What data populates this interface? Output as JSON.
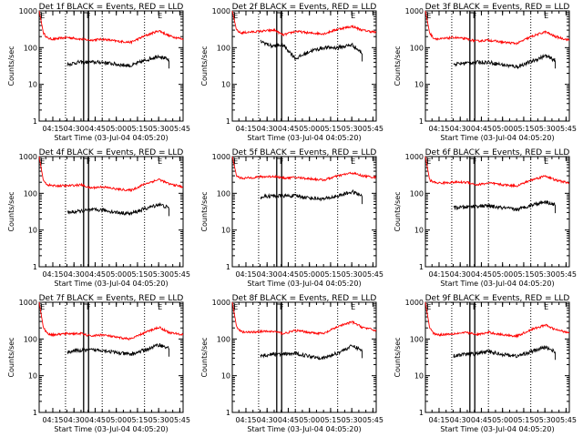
{
  "figure": {
    "x_tick_labels": [
      "04:15",
      "04:30",
      "04:45",
      "05:00",
      "05:15",
      "05:30",
      "05:45"
    ],
    "y_tick_labels": [
      "1",
      "10",
      "100",
      "1000"
    ],
    "ylabel": "Counts/sec",
    "xlabel": "Start Time (03-Jul-04 04:05:20)",
    "flag_left": "E",
    "flag_mid": "F",
    "flag_right": "E",
    "colors": {
      "events": "#000000",
      "lld": "#ff0000",
      "axes": "#000000"
    }
  },
  "chart_data": [
    {
      "type": "line",
      "title": "Det 1f BLACK = Events, RED = LLD",
      "xlabel": "Start Time (03-Jul-04 04:05:20)",
      "ylabel": "Counts/sec",
      "x_unit": "minutes after 04:05:20",
      "x_range": [
        0,
        102
      ],
      "ylim": [
        1,
        1000
      ],
      "y_scale": "log",
      "series": [
        {
          "color": "#ff0000",
          "x": [
            0,
            3,
            6,
            10,
            20,
            30,
            36,
            45,
            55,
            65,
            75,
            85,
            92,
            102
          ],
          "y": [
            1000,
            250,
            180,
            170,
            190,
            170,
            160,
            170,
            150,
            140,
            210,
            290,
            210,
            170
          ]
        },
        {
          "color": "#000000",
          "x": [
            20,
            28,
            36,
            45,
            55,
            65,
            75,
            85,
            92
          ],
          "y": [
            35,
            40,
            40,
            40,
            35,
            32,
            45,
            60,
            45
          ]
        }
      ]
    },
    {
      "type": "line",
      "title": "Det 2f BLACK = Events, RED = LLD",
      "xlabel": "Start Time (03-Jul-04 04:05:20)",
      "ylabel": "Counts/sec",
      "x_unit": "minutes after 04:05:20",
      "x_range": [
        0,
        102
      ],
      "ylim": [
        1,
        1000
      ],
      "y_scale": "log",
      "series": [
        {
          "color": "#ff0000",
          "x": [
            0,
            3,
            6,
            10,
            20,
            30,
            36,
            45,
            55,
            65,
            75,
            85,
            92,
            102
          ],
          "y": [
            1000,
            300,
            250,
            260,
            280,
            300,
            220,
            280,
            250,
            240,
            320,
            380,
            300,
            260
          ]
        },
        {
          "color": "#000000",
          "x": [
            20,
            28,
            36,
            45,
            55,
            65,
            75,
            85,
            92
          ],
          "y": [
            150,
            110,
            120,
            50,
            80,
            100,
            100,
            120,
            70
          ]
        }
      ]
    },
    {
      "type": "line",
      "title": "Det 3f BLACK = Events, RED = LLD",
      "xlabel": "Start Time (03-Jul-04 04:05:20)",
      "ylabel": "Counts/sec",
      "x_unit": "minutes after 04:05:20",
      "x_range": [
        0,
        102
      ],
      "ylim": [
        1,
        1000
      ],
      "y_scale": "log",
      "series": [
        {
          "color": "#ff0000",
          "x": [
            0,
            3,
            6,
            10,
            20,
            30,
            36,
            45,
            55,
            65,
            75,
            85,
            92,
            102
          ],
          "y": [
            1000,
            250,
            180,
            170,
            190,
            170,
            150,
            160,
            140,
            130,
            200,
            270,
            200,
            160
          ]
        },
        {
          "color": "#000000",
          "x": [
            20,
            28,
            36,
            45,
            55,
            65,
            75,
            85,
            92
          ],
          "y": [
            35,
            38,
            40,
            40,
            34,
            30,
            42,
            60,
            45
          ]
        }
      ]
    },
    {
      "type": "line",
      "title": "Det 4f BLACK = Events, RED = LLD",
      "xlabel": "Start Time (03-Jul-04 04:05:20)",
      "ylabel": "Counts/sec",
      "x_unit": "minutes after 04:05:20",
      "x_range": [
        0,
        102
      ],
      "ylim": [
        1,
        1000
      ],
      "y_scale": "log",
      "series": [
        {
          "color": "#ff0000",
          "x": [
            0,
            3,
            6,
            10,
            20,
            30,
            36,
            45,
            55,
            65,
            75,
            85,
            92,
            102
          ],
          "y": [
            1000,
            220,
            170,
            160,
            160,
            170,
            140,
            150,
            130,
            120,
            180,
            240,
            180,
            150
          ]
        },
        {
          "color": "#000000",
          "x": [
            20,
            28,
            36,
            45,
            55,
            65,
            75,
            85,
            92
          ],
          "y": [
            30,
            32,
            35,
            35,
            30,
            28,
            38,
            50,
            40
          ]
        }
      ]
    },
    {
      "type": "line",
      "title": "Det 5f BLACK = Events, RED = LLD",
      "xlabel": "Start Time (03-Jul-04 04:05:20)",
      "ylabel": "Counts/sec",
      "x_unit": "minutes after 04:05:20",
      "x_range": [
        0,
        102
      ],
      "ylim": [
        1,
        1000
      ],
      "y_scale": "log",
      "series": [
        {
          "color": "#ff0000",
          "x": [
            0,
            3,
            6,
            10,
            20,
            30,
            36,
            45,
            55,
            65,
            75,
            85,
            92,
            102
          ],
          "y": [
            1000,
            300,
            260,
            260,
            280,
            290,
            260,
            270,
            250,
            230,
            300,
            360,
            300,
            270
          ]
        },
        {
          "color": "#000000",
          "x": [
            20,
            28,
            36,
            45,
            55,
            65,
            75,
            85,
            92
          ],
          "y": [
            80,
            85,
            85,
            85,
            75,
            70,
            85,
            110,
            85
          ]
        }
      ]
    },
    {
      "type": "line",
      "title": "Det 6f BLACK = Events, RED = LLD",
      "xlabel": "Start Time (03-Jul-04 04:05:20)",
      "ylabel": "Counts/sec",
      "x_unit": "minutes after 04:05:20",
      "x_range": [
        0,
        102
      ],
      "ylim": [
        1,
        1000
      ],
      "y_scale": "log",
      "series": [
        {
          "color": "#ff0000",
          "x": [
            0,
            3,
            6,
            10,
            20,
            30,
            36,
            45,
            55,
            65,
            75,
            85,
            92,
            102
          ],
          "y": [
            1000,
            230,
            200,
            190,
            200,
            200,
            170,
            190,
            170,
            160,
            230,
            300,
            230,
            190
          ]
        },
        {
          "color": "#000000",
          "x": [
            20,
            28,
            36,
            45,
            55,
            65,
            75,
            85,
            92
          ],
          "y": [
            40,
            42,
            45,
            45,
            40,
            36,
            48,
            60,
            48
          ]
        }
      ]
    },
    {
      "type": "line",
      "title": "Det 7f BLACK = Events, RED = LLD",
      "xlabel": "Start Time (03-Jul-04 04:05:20)",
      "ylabel": "Counts/sec",
      "x_unit": "minutes after 04:05:20",
      "x_range": [
        0,
        102
      ],
      "ylim": [
        1,
        1000
      ],
      "y_scale": "log",
      "series": [
        {
          "color": "#ff0000",
          "x": [
            0,
            3,
            6,
            10,
            20,
            30,
            36,
            45,
            55,
            65,
            75,
            85,
            92,
            102
          ],
          "y": [
            1000,
            200,
            140,
            130,
            140,
            140,
            120,
            130,
            110,
            100,
            150,
            210,
            150,
            130
          ]
        },
        {
          "color": "#000000",
          "x": [
            20,
            28,
            36,
            45,
            55,
            65,
            75,
            85,
            92
          ],
          "y": [
            45,
            48,
            50,
            50,
            42,
            38,
            50,
            70,
            55
          ]
        }
      ]
    },
    {
      "type": "line",
      "title": "Det 8f BLACK = Events, RED = LLD",
      "xlabel": "Start Time (03-Jul-04 04:05:20)",
      "ylabel": "Counts/sec",
      "x_unit": "minutes after 04:05:20",
      "x_range": [
        0,
        102
      ],
      "ylim": [
        1,
        1000
      ],
      "y_scale": "log",
      "series": [
        {
          "color": "#ff0000",
          "x": [
            0,
            3,
            6,
            10,
            20,
            30,
            36,
            45,
            55,
            65,
            75,
            85,
            92,
            102
          ],
          "y": [
            1000,
            220,
            160,
            150,
            160,
            160,
            140,
            170,
            150,
            140,
            220,
            290,
            210,
            170
          ]
        },
        {
          "color": "#000000",
          "x": [
            20,
            28,
            36,
            45,
            55,
            65,
            75,
            85,
            92
          ],
          "y": [
            35,
            38,
            38,
            40,
            34,
            30,
            42,
            65,
            50
          ]
        }
      ]
    },
    {
      "type": "line",
      "title": "Det 9f BLACK = Events, RED = LLD",
      "xlabel": "Start Time (03-Jul-04 04:05:20)",
      "ylabel": "Counts/sec",
      "x_unit": "minutes after 04:05:20",
      "x_range": [
        0,
        102
      ],
      "ylim": [
        1,
        1000
      ],
      "y_scale": "log",
      "series": [
        {
          "color": "#ff0000",
          "x": [
            0,
            3,
            6,
            10,
            20,
            30,
            36,
            45,
            55,
            65,
            75,
            85,
            92,
            102
          ],
          "y": [
            1000,
            200,
            140,
            130,
            140,
            150,
            130,
            150,
            130,
            120,
            180,
            240,
            180,
            150
          ]
        },
        {
          "color": "#000000",
          "x": [
            20,
            28,
            36,
            45,
            55,
            65,
            75,
            85,
            92
          ],
          "y": [
            35,
            38,
            40,
            45,
            38,
            34,
            45,
            60,
            45
          ]
        }
      ]
    }
  ]
}
